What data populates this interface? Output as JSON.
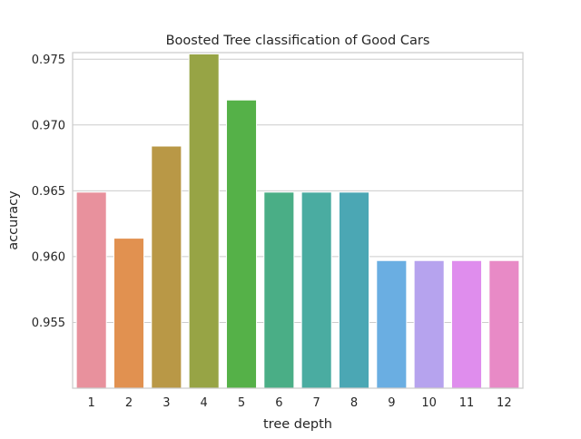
{
  "chart_data": {
    "type": "bar",
    "title": "Boosted Tree classification of Good Cars",
    "xlabel": "tree depth",
    "ylabel": "accuracy",
    "categories": [
      "1",
      "2",
      "3",
      "4",
      "5",
      "6",
      "7",
      "8",
      "9",
      "10",
      "11",
      "12"
    ],
    "values": [
      0.9649,
      0.9614,
      0.9684,
      0.9754,
      0.9719,
      0.9649,
      0.9649,
      0.9649,
      0.9597,
      0.9597,
      0.9597,
      0.9597
    ],
    "ylim": [
      0.95,
      0.9755
    ],
    "yticks": [
      "0.955",
      "0.960",
      "0.965",
      "0.970",
      "0.975"
    ],
    "ytick_values": [
      0.955,
      0.96,
      0.965,
      0.97,
      0.975
    ],
    "grid": true,
    "bar_colors": [
      "#e8919d",
      "#e19150",
      "#b99846",
      "#97a445",
      "#55b148",
      "#4aae86",
      "#4aaca1",
      "#4ba7b4",
      "#6aaee2",
      "#b6a3ee",
      "#df8ded",
      "#e88ac6"
    ]
  }
}
